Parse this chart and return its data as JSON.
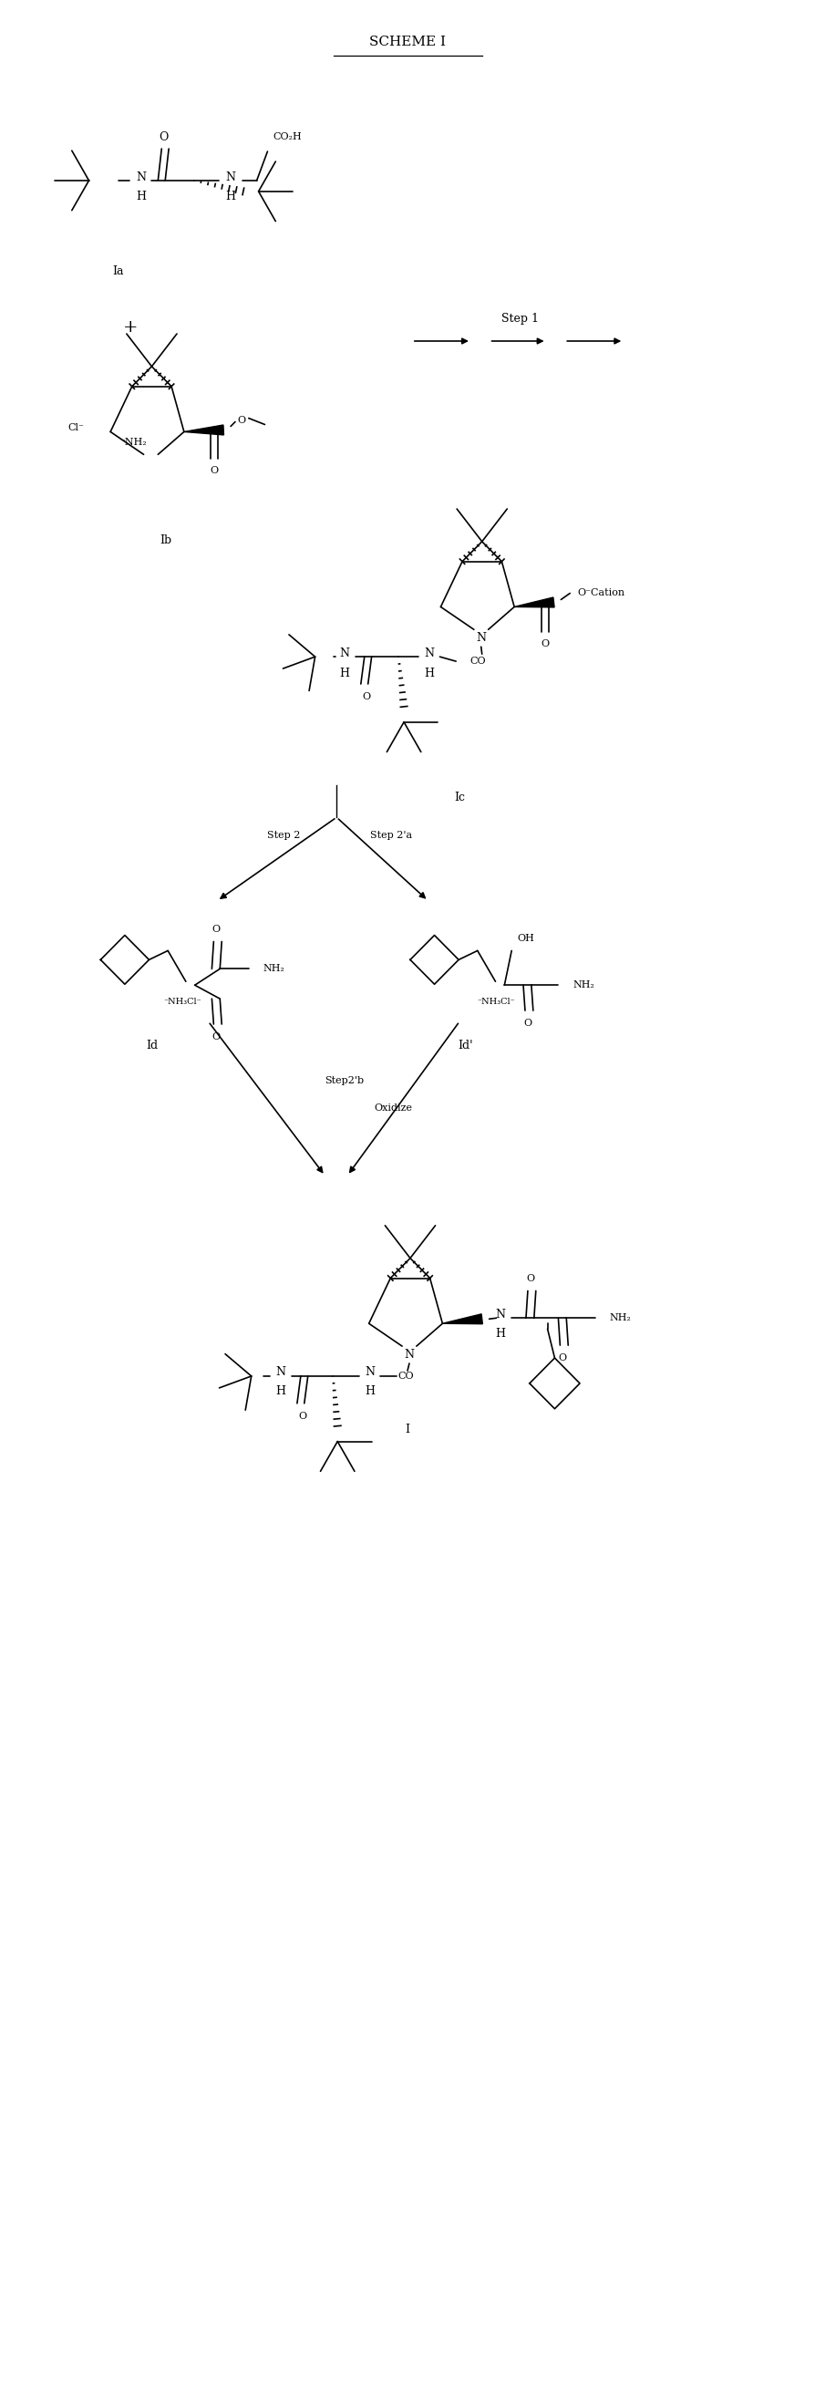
{
  "title": "SCHEME I",
  "bg_color": "#ffffff",
  "fig_width": 8.95,
  "fig_height": 26.24,
  "lw": 1.2,
  "fs": 9,
  "fs_s": 8,
  "labels": {
    "Ia": "Ia",
    "Ib": "Ib",
    "Ic": "Ic",
    "Id": "Id",
    "Idp": "Id'",
    "I": "I",
    "Step1": "Step 1",
    "Step2": "Step 2",
    "Step2a": "Step 2'a",
    "Step2b": "Step2'b",
    "Oxidize": "Oxidize"
  }
}
